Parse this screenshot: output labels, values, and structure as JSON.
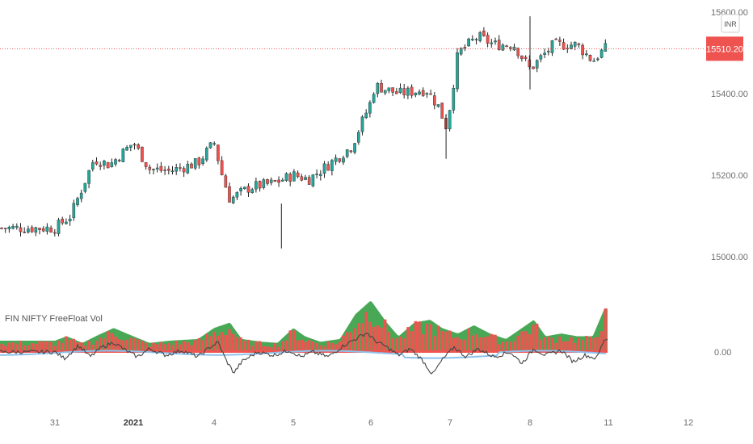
{
  "colors": {
    "up": "#26a69a",
    "down": "#ef5350",
    "wick": "#222222",
    "price_line": "#ef5350",
    "vol_red": "#ef5350",
    "vol_green": "#3fa34d",
    "ma_blue": "#8ec1ec",
    "osc_line": "#444444"
  },
  "currency_label": "INR",
  "current_price_label": "15510.20",
  "indicator_label": "FIN NIFTY FreeFloat Vol",
  "chart_data": [
    {
      "type": "candlestick",
      "title": "",
      "x_tick_labels": [
        {
          "label": "31",
          "day_index": 0,
          "bold": false
        },
        {
          "label": "2021",
          "day_index": 1,
          "bold": true
        },
        {
          "label": "4",
          "day_index": 2,
          "bold": false
        },
        {
          "label": "5",
          "day_index": 3,
          "bold": false
        },
        {
          "label": "6",
          "day_index": 4,
          "bold": false
        },
        {
          "label": "7",
          "day_index": 5,
          "bold": false
        },
        {
          "label": "8",
          "day_index": 6,
          "bold": false
        },
        {
          "label": "11",
          "day_index": 7,
          "bold": false
        },
        {
          "label": "12",
          "day_index": 8,
          "bold": false
        }
      ],
      "y_tick_labels": [
        "15600.00",
        "15400.00",
        "15200.00",
        "15000.00"
      ],
      "y_ticks": [
        15600,
        15400,
        15200,
        15000
      ],
      "ylim": [
        14960,
        15610
      ],
      "current_price": 15510.2,
      "anchor_closes": [
        [
          0,
          15070
        ],
        [
          0.2,
          15100
        ],
        [
          0.5,
          15240
        ],
        [
          0.7,
          15225
        ],
        [
          1.0,
          15280
        ],
        [
          1.2,
          15215
        ],
        [
          1.45,
          15210
        ],
        [
          1.8,
          15230
        ],
        [
          2.0,
          15280
        ],
        [
          2.1,
          15200
        ],
        [
          2.2,
          15140
        ],
        [
          2.45,
          15170
        ],
        [
          2.75,
          15180
        ],
        [
          3.0,
          15200
        ],
        [
          3.2,
          15190
        ],
        [
          3.45,
          15225
        ],
        [
          3.75,
          15270
        ],
        [
          4.0,
          15380
        ],
        [
          4.05,
          15420
        ],
        [
          4.35,
          15400
        ],
        [
          4.7,
          15410
        ],
        [
          4.85,
          15370
        ],
        [
          4.95,
          15320
        ],
        [
          5.0,
          15370
        ],
        [
          5.1,
          15500
        ],
        [
          5.35,
          15540
        ],
        [
          5.55,
          15520
        ],
        [
          5.8,
          15520
        ],
        [
          6.0,
          15460
        ],
        [
          6.3,
          15520
        ],
        [
          6.6,
          15520
        ],
        [
          6.8,
          15480
        ],
        [
          6.95,
          15510
        ]
      ],
      "volume_anchors": [
        [
          0,
          0.22
        ],
        [
          0.15,
          0.3
        ],
        [
          0.35,
          0.18
        ],
        [
          0.55,
          0.32
        ],
        [
          0.75,
          0.45
        ],
        [
          1.0,
          0.3
        ],
        [
          1.2,
          0.18
        ],
        [
          1.45,
          0.22
        ],
        [
          1.8,
          0.25
        ],
        [
          2.0,
          0.45
        ],
        [
          2.2,
          0.55
        ],
        [
          2.35,
          0.25
        ],
        [
          2.6,
          0.2
        ],
        [
          2.8,
          0.18
        ],
        [
          3.0,
          0.45
        ],
        [
          3.15,
          0.3
        ],
        [
          3.35,
          0.2
        ],
        [
          3.6,
          0.25
        ],
        [
          3.8,
          0.7
        ],
        [
          4.0,
          0.95
        ],
        [
          4.2,
          0.55
        ],
        [
          4.35,
          0.3
        ],
        [
          4.55,
          0.55
        ],
        [
          4.75,
          0.6
        ],
        [
          4.9,
          0.45
        ],
        [
          5.1,
          0.35
        ],
        [
          5.3,
          0.5
        ],
        [
          5.5,
          0.35
        ],
        [
          5.7,
          0.25
        ],
        [
          5.9,
          0.45
        ],
        [
          6.05,
          0.6
        ],
        [
          6.2,
          0.3
        ],
        [
          6.4,
          0.35
        ],
        [
          6.6,
          0.3
        ],
        [
          6.8,
          0.3
        ],
        [
          6.95,
          0.8
        ]
      ],
      "oscillator_anchors": [
        [
          0,
          0.05
        ],
        [
          0.12,
          -0.15
        ],
        [
          0.3,
          0.25
        ],
        [
          0.45,
          -0.1
        ],
        [
          0.6,
          0.2
        ],
        [
          0.75,
          0.35
        ],
        [
          0.9,
          0.1
        ],
        [
          1.05,
          -0.1
        ],
        [
          1.2,
          0.15
        ],
        [
          1.4,
          -0.05
        ],
        [
          1.6,
          0.1
        ],
        [
          1.8,
          -0.1
        ],
        [
          1.95,
          0.2
        ],
        [
          2.05,
          0.35
        ],
        [
          2.15,
          -0.2
        ],
        [
          2.25,
          -0.6
        ],
        [
          2.35,
          -0.25
        ],
        [
          2.55,
          0.05
        ],
        [
          2.75,
          -0.05
        ],
        [
          2.95,
          0.1
        ],
        [
          3.1,
          -0.1
        ],
        [
          3.25,
          0.05
        ],
        [
          3.45,
          -0.1
        ],
        [
          3.65,
          0.25
        ],
        [
          3.8,
          0.45
        ],
        [
          3.95,
          0.65
        ],
        [
          4.05,
          0.4
        ],
        [
          4.2,
          0.2
        ],
        [
          4.35,
          -0.05
        ],
        [
          4.5,
          0.15
        ],
        [
          4.65,
          -0.2
        ],
        [
          4.78,
          -0.65
        ],
        [
          4.9,
          -0.2
        ],
        [
          5.05,
          0.2
        ],
        [
          5.2,
          -0.1
        ],
        [
          5.35,
          0.15
        ],
        [
          5.55,
          -0.1
        ],
        [
          5.75,
          0.05
        ],
        [
          5.9,
          -0.3
        ],
        [
          6.05,
          0.15
        ],
        [
          6.2,
          -0.05
        ],
        [
          6.4,
          0.1
        ],
        [
          6.55,
          -0.25
        ],
        [
          6.7,
          -0.05
        ],
        [
          6.85,
          -0.15
        ],
        [
          6.95,
          0.45
        ]
      ]
    }
  ]
}
